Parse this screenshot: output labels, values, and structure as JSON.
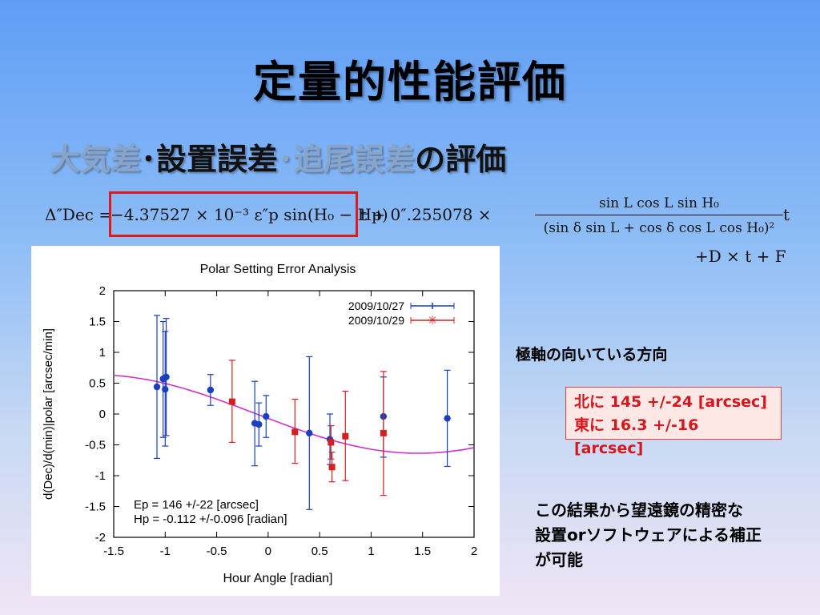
{
  "slide": {
    "title": "定量的性能評価",
    "subtitle": {
      "part1": "大気差",
      "sep1": "･",
      "part2": "設置誤差",
      "sep2": "･",
      "part3": "追尾誤差",
      "part4": "の評価"
    },
    "formula": {
      "lhs": "Δ″Dec =",
      "term1": "−4.37527 × 10⁻³ ε″p sin(H₀ − Hp)",
      "term2": "t + 0″.255078 ×",
      "numerator": "sin L cos L sin H₀",
      "denominator": "(sin δ sin L + cos δ cos L cos H₀)²",
      "term3": "t",
      "line2": "+D × t + F"
    },
    "note_direction": "極軸の向いている方向",
    "result_north": "北に 145  +/-24 [arcsec]",
    "result_east": "東に 16.3 +/-16 [arcsec]",
    "conclusion": [
      "この結果から望遠鏡の精密な",
      "設置orソフトウェアによる補正",
      "が可能"
    ],
    "colors": {
      "accent_red": "#e01a1a",
      "series1": "#1a3fbf",
      "series2": "#d42020",
      "fit": "#cc33cc"
    }
  },
  "chart_data": {
    "type": "scatter",
    "title": "Polar Setting Error Analysis",
    "xlabel": "Hour Angle [radian]",
    "ylabel": "d(Dec)/d(min)|polar [arcsec/min]",
    "xlim": [
      -1.5,
      2
    ],
    "ylim": [
      -2,
      2
    ],
    "xticks": [
      -1.5,
      -1,
      -0.5,
      0,
      0.5,
      1,
      1.5,
      2
    ],
    "xtick_labels": [
      "-1.5",
      "-1",
      "-0.5",
      "0",
      "0.5",
      "1",
      "1.5",
      "2"
    ],
    "yticks": [
      -2,
      -1.5,
      -1,
      -0.5,
      0,
      0.5,
      1,
      1.5,
      2
    ],
    "ytick_labels": [
      "-2",
      "-1.5",
      "-1",
      "-0.5",
      "0",
      "0.5",
      "1",
      "1.5",
      "2"
    ],
    "grid": false,
    "legend": "top-right",
    "series": [
      {
        "name": "2009/10/27",
        "marker": "circle",
        "color": "#1a3fbf",
        "points": [
          {
            "x": -1.08,
            "y": 0.44,
            "lo": -0.72,
            "hi": 1.6
          },
          {
            "x": -1.02,
            "y": 0.57,
            "lo": -0.38,
            "hi": 1.5
          },
          {
            "x": -1.0,
            "y": 0.4,
            "lo": -0.52,
            "hi": 1.34
          },
          {
            "x": -0.99,
            "y": 0.6,
            "lo": -0.35,
            "hi": 1.55
          },
          {
            "x": -0.56,
            "y": 0.39,
            "lo": 0.14,
            "hi": 0.64
          },
          {
            "x": -0.13,
            "y": -0.15,
            "lo": -0.84,
            "hi": 0.53
          },
          {
            "x": -0.09,
            "y": -0.17,
            "lo": -0.52,
            "hi": 0.18
          },
          {
            "x": -0.02,
            "y": -0.04,
            "lo": -0.38,
            "hi": 0.3
          },
          {
            "x": 0.4,
            "y": -0.31,
            "lo": -1.55,
            "hi": 0.93
          },
          {
            "x": 0.6,
            "y": -0.41,
            "lo": -0.82,
            "hi": 0.0
          },
          {
            "x": 1.12,
            "y": -0.04,
            "lo": -0.7,
            "hi": 0.6
          },
          {
            "x": 1.74,
            "y": -0.07,
            "lo": -0.85,
            "hi": 0.71
          }
        ]
      },
      {
        "name": "2009/10/29",
        "marker": "square",
        "color": "#d42020",
        "points": [
          {
            "x": -0.35,
            "y": 0.2,
            "lo": -0.46,
            "hi": 0.87
          },
          {
            "x": 0.26,
            "y": -0.29,
            "lo": -0.8,
            "hi": 0.24
          },
          {
            "x": 0.61,
            "y": -0.46,
            "lo": -0.73,
            "hi": -0.19
          },
          {
            "x": 0.62,
            "y": -0.86,
            "lo": -1.1,
            "hi": -0.62
          },
          {
            "x": 0.75,
            "y": -0.36,
            "lo": -1.08,
            "hi": 0.37
          },
          {
            "x": 1.12,
            "y": -0.31,
            "lo": -1.32,
            "hi": 0.69
          }
        ]
      }
    ],
    "fit": {
      "amplitude": 0.637,
      "phase": -0.112,
      "x_start": -1.5,
      "x_end": 2
    },
    "annotation": [
      "Ep = 146 +/-22 [arcsec]",
      "Hp = -0.112 +/-0.096 [radian]"
    ]
  }
}
